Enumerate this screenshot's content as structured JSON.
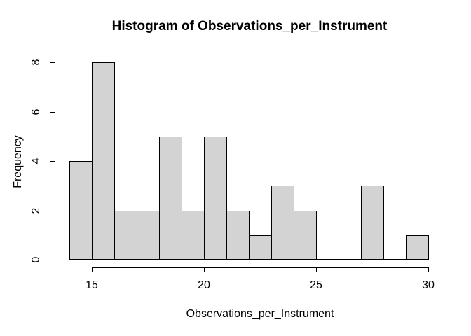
{
  "window": {
    "background": "#FFFFFF"
  },
  "chart_data": {
    "type": "bar",
    "subtype": "histogram",
    "title": "Histogram of Observations_per_Instrument",
    "xlabel": "Observations_per_Instrument",
    "ylabel": "Frequency",
    "bin_start": 14,
    "bin_width": 1,
    "bin_edges": [
      14,
      15,
      16,
      17,
      18,
      19,
      20,
      21,
      22,
      23,
      24,
      25,
      26,
      27,
      28,
      29,
      30
    ],
    "counts": [
      4,
      8,
      2,
      2,
      5,
      2,
      5,
      2,
      1,
      3,
      2,
      0,
      0,
      3,
      0,
      1
    ],
    "x_ticks": [
      15,
      20,
      25,
      30
    ],
    "y_ticks": [
      0,
      2,
      4,
      6,
      8
    ],
    "xlim": [
      14,
      30
    ],
    "ylim": [
      0,
      8
    ],
    "grid": false,
    "legend": false,
    "bar_fill": "#D3D3D3",
    "bar_border": "#000000",
    "axis_color": "#000000",
    "text_color": "#000000"
  }
}
